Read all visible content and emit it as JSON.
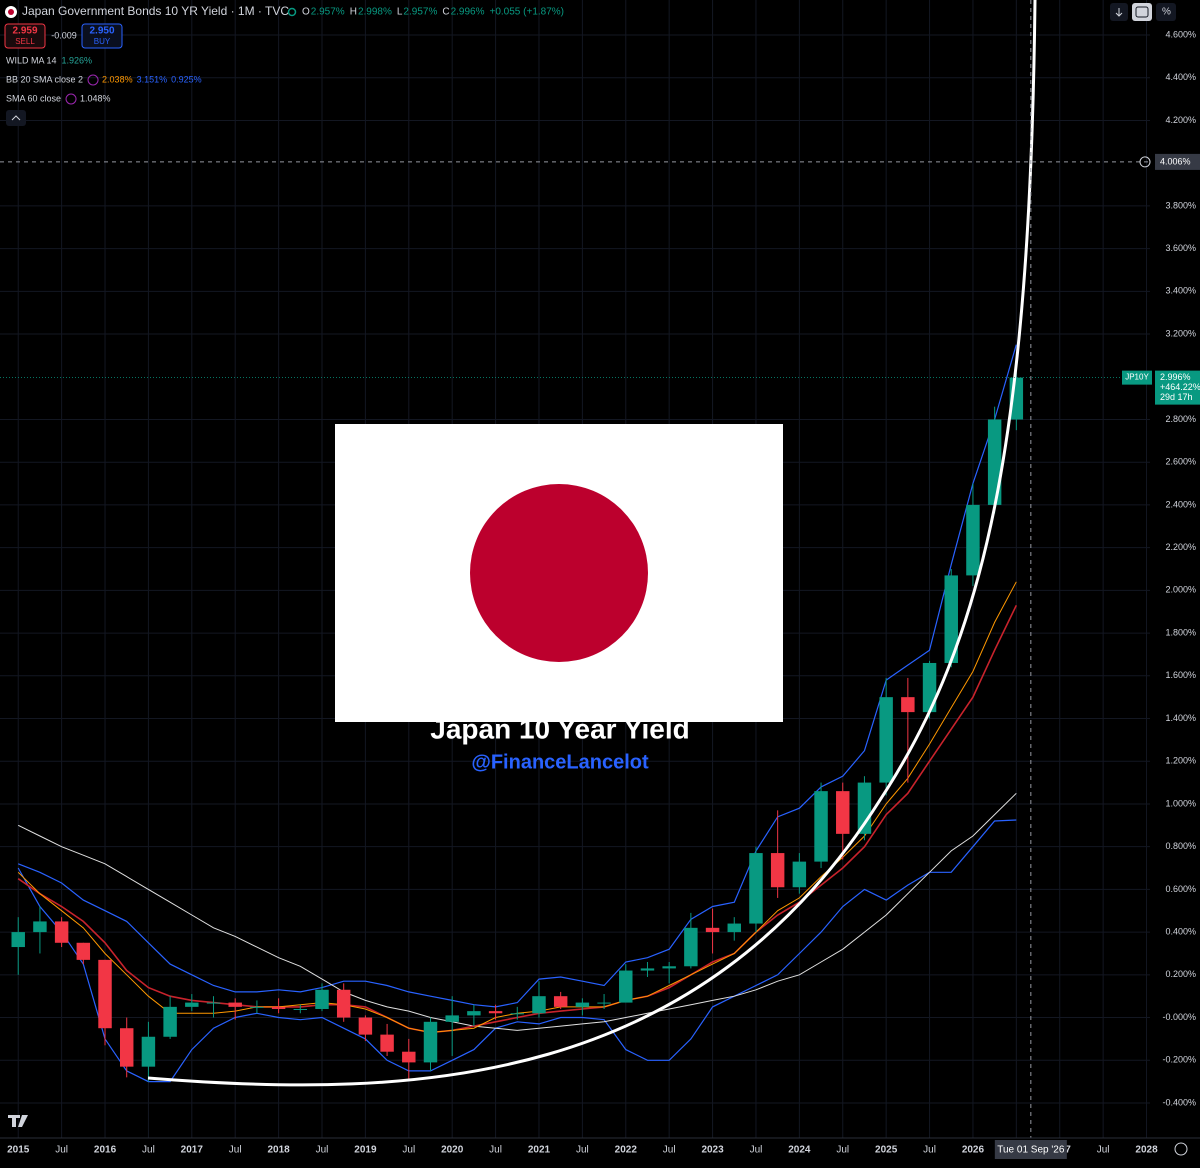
{
  "chart_data": {
    "type": "candlestick",
    "title": "Japan Government Bonds 10 YR Yield · 1M · TVC",
    "ohlc_legend": [
      "O",
      "2.957%",
      "H",
      "2.998%",
      "L",
      "2.957%",
      "C",
      "2.996%",
      "+0.055 (+1.87%)"
    ],
    "trade_buttons": {
      "sell_price": "2.959",
      "sell": "SELL",
      "spread": "-0.009",
      "buy_price": "2.950",
      "buy": "BUY"
    },
    "indicators": [
      {
        "name": "WILD MA 14",
        "values": [
          "1.926%"
        ]
      },
      {
        "name": "BB 20 SMA close 2",
        "values": [
          "2.038%",
          "3.151%",
          "0.925%"
        ]
      },
      {
        "name": "SMA 60 close",
        "values": [
          "1.048%"
        ]
      }
    ],
    "overlay_title": "Japan 10 Year Yield",
    "overlay_handle": "@FinanceLancelot",
    "price_tag": {
      "symbol": "JP10Y",
      "price": "2.996%",
      "change": "+464.22%",
      "countdown": "29d 17h"
    },
    "crosshair": {
      "price_label": "4.006%",
      "price": 4.006,
      "date_label": "Tue 01 Sep '26",
      "date": 2026.667
    },
    "current_price": 2.996,
    "up_color": "#089981",
    "down_color": "#f23645",
    "x": [
      2015.0,
      2015.25,
      2015.5,
      2015.75,
      2016.0,
      2016.25,
      2016.5,
      2016.75,
      2017.0,
      2017.25,
      2017.5,
      2017.75,
      2018.0,
      2018.25,
      2018.5,
      2018.75,
      2019.0,
      2019.25,
      2019.5,
      2019.75,
      2020.0,
      2020.25,
      2020.5,
      2020.75,
      2021.0,
      2021.25,
      2021.5,
      2021.75,
      2022.0,
      2022.25,
      2022.5,
      2022.75,
      2023.0,
      2023.25,
      2023.5,
      2023.75,
      2024.0,
      2024.25,
      2024.5,
      2024.75,
      2025.0,
      2025.25,
      2025.5,
      2025.75,
      2026.0,
      2026.25,
      2026.5
    ],
    "open": [
      0.33,
      0.4,
      0.45,
      0.35,
      0.27,
      -0.05,
      -0.23,
      -0.09,
      0.05,
      0.07,
      0.07,
      0.05,
      0.05,
      0.04,
      0.04,
      0.13,
      0.0,
      -0.08,
      -0.16,
      -0.21,
      -0.02,
      0.01,
      0.03,
      0.02,
      0.02,
      0.1,
      0.05,
      0.07,
      0.07,
      0.22,
      0.23,
      0.24,
      0.42,
      0.4,
      0.44,
      0.77,
      0.61,
      0.73,
      1.06,
      0.86,
      1.1,
      1.5,
      1.43,
      1.66,
      2.07,
      2.4,
      2.8
    ],
    "high": [
      0.47,
      0.52,
      0.47,
      0.35,
      0.27,
      0.0,
      -0.02,
      0.1,
      0.11,
      0.1,
      0.09,
      0.08,
      0.09,
      0.06,
      0.16,
      0.16,
      0.01,
      -0.03,
      -0.1,
      0.0,
      0.1,
      0.06,
      0.06,
      0.05,
      0.17,
      0.12,
      0.09,
      0.11,
      0.25,
      0.26,
      0.26,
      0.49,
      0.51,
      0.47,
      0.8,
      0.97,
      0.77,
      1.1,
      1.1,
      1.13,
      1.59,
      1.59,
      1.67,
      2.1,
      2.5,
      2.86,
      3.02
    ],
    "low": [
      0.2,
      0.3,
      0.33,
      0.25,
      -0.13,
      -0.28,
      -0.3,
      -0.1,
      0.03,
      0.0,
      -0.01,
      0.02,
      0.02,
      0.02,
      0.03,
      -0.02,
      -0.11,
      -0.18,
      -0.29,
      -0.25,
      -0.18,
      -0.04,
      -0.01,
      -0.01,
      0.0,
      0.04,
      0.01,
      0.04,
      0.1,
      0.19,
      0.16,
      0.23,
      0.3,
      0.36,
      0.4,
      0.56,
      0.58,
      0.7,
      0.74,
      0.83,
      1.04,
      1.1,
      1.4,
      1.64,
      2.02,
      2.36,
      2.75
    ],
    "close": [
      0.4,
      0.45,
      0.35,
      0.27,
      -0.05,
      -0.23,
      -0.09,
      0.05,
      0.07,
      0.07,
      0.05,
      0.05,
      0.04,
      0.04,
      0.13,
      0.0,
      -0.08,
      -0.16,
      -0.21,
      -0.02,
      0.01,
      0.03,
      0.02,
      0.02,
      0.1,
      0.05,
      0.07,
      0.07,
      0.22,
      0.23,
      0.24,
      0.42,
      0.4,
      0.44,
      0.77,
      0.61,
      0.73,
      1.06,
      0.86,
      1.1,
      1.5,
      1.43,
      1.66,
      2.07,
      2.4,
      2.8,
      2.996
    ],
    "series": [
      {
        "name": "BB upper",
        "color": "#2962ff",
        "width": 1.2,
        "values": [
          0.72,
          0.68,
          0.63,
          0.55,
          0.5,
          0.45,
          0.35,
          0.25,
          0.2,
          0.15,
          0.12,
          0.12,
          0.13,
          0.12,
          0.14,
          0.17,
          0.17,
          0.15,
          0.12,
          0.1,
          0.08,
          0.06,
          0.05,
          0.07,
          0.18,
          0.19,
          0.17,
          0.15,
          0.26,
          0.28,
          0.32,
          0.46,
          0.52,
          0.54,
          0.78,
          0.94,
          0.98,
          1.08,
          1.13,
          1.25,
          1.58,
          1.65,
          1.72,
          2.12,
          2.5,
          2.8,
          3.15
        ]
      },
      {
        "name": "BB lower",
        "color": "#2962ff",
        "width": 1.2,
        "values": [
          0.7,
          0.52,
          0.4,
          0.25,
          -0.1,
          -0.25,
          -0.3,
          -0.3,
          -0.15,
          -0.05,
          0.0,
          0.02,
          0.0,
          -0.01,
          0.0,
          -0.05,
          -0.1,
          -0.2,
          -0.25,
          -0.25,
          -0.2,
          -0.15,
          -0.05,
          -0.02,
          -0.03,
          0.0,
          0.0,
          -0.01,
          -0.15,
          -0.2,
          -0.2,
          -0.1,
          0.05,
          0.1,
          0.15,
          0.2,
          0.3,
          0.4,
          0.52,
          0.6,
          0.55,
          0.62,
          0.68,
          0.68,
          0.8,
          0.92,
          0.925
        ]
      },
      {
        "name": "SMA 60",
        "color": "#e0e0e0",
        "width": 1,
        "values": [
          0.9,
          0.85,
          0.8,
          0.76,
          0.72,
          0.66,
          0.6,
          0.54,
          0.48,
          0.42,
          0.38,
          0.33,
          0.28,
          0.24,
          0.18,
          0.12,
          0.08,
          0.05,
          0.03,
          0.0,
          -0.02,
          -0.04,
          -0.05,
          -0.06,
          -0.05,
          -0.04,
          -0.03,
          -0.02,
          0.0,
          0.02,
          0.04,
          0.06,
          0.08,
          0.1,
          0.13,
          0.17,
          0.2,
          0.26,
          0.32,
          0.4,
          0.48,
          0.58,
          0.68,
          0.78,
          0.85,
          0.95,
          1.05
        ]
      },
      {
        "name": "WILD MA",
        "color": "#c8232c",
        "width": 1.6,
        "values": [
          0.65,
          0.58,
          0.52,
          0.45,
          0.35,
          0.22,
          0.14,
          0.1,
          0.08,
          0.07,
          0.06,
          0.05,
          0.05,
          0.05,
          0.06,
          0.06,
          0.05,
          0.0,
          -0.05,
          -0.07,
          -0.06,
          -0.04,
          -0.02,
          0.0,
          0.02,
          0.03,
          0.04,
          0.05,
          0.08,
          0.1,
          0.14,
          0.2,
          0.26,
          0.3,
          0.4,
          0.48,
          0.54,
          0.62,
          0.7,
          0.8,
          0.95,
          1.05,
          1.2,
          1.35,
          1.5,
          1.72,
          1.93
        ]
      },
      {
        "name": "BB basis",
        "color": "#ff9800",
        "width": 1,
        "values": [
          0.68,
          0.58,
          0.5,
          0.42,
          0.3,
          0.2,
          0.1,
          0.02,
          0.02,
          0.02,
          0.03,
          0.05,
          0.05,
          0.06,
          0.07,
          0.06,
          0.04,
          0.0,
          -0.05,
          -0.07,
          -0.06,
          -0.05,
          0.0,
          0.02,
          0.03,
          0.05,
          0.05,
          0.05,
          0.08,
          0.1,
          0.15,
          0.2,
          0.25,
          0.3,
          0.4,
          0.5,
          0.56,
          0.66,
          0.75,
          0.85,
          1.0,
          1.12,
          1.28,
          1.45,
          1.62,
          1.85,
          2.04
        ]
      }
    ],
    "xlim": [
      2014.79,
      2028.04
    ],
    "ylim": [
      -0.564,
      4.764
    ],
    "yticks": [
      {
        "value": 4.6,
        "label": "4.600%"
      },
      {
        "value": 4.4,
        "label": "4.400%"
      },
      {
        "value": 4.2,
        "label": "4.200%"
      },
      {
        "value": 3.8,
        "label": "3.800%"
      },
      {
        "value": 3.6,
        "label": "3.600%"
      },
      {
        "value": 3.4,
        "label": "3.400%"
      },
      {
        "value": 3.2,
        "label": "3.200%"
      },
      {
        "value": 2.8,
        "label": "2.800%"
      },
      {
        "value": 2.6,
        "label": "2.600%"
      },
      {
        "value": 2.4,
        "label": "2.400%"
      },
      {
        "value": 2.2,
        "label": "2.200%"
      },
      {
        "value": 2.0,
        "label": "2.000%"
      },
      {
        "value": 1.8,
        "label": "1.800%"
      },
      {
        "value": 1.6,
        "label": "1.600%"
      },
      {
        "value": 1.4,
        "label": "1.400%"
      },
      {
        "value": 1.2,
        "label": "1.200%"
      },
      {
        "value": 1.0,
        "label": "1.000%"
      },
      {
        "value": 0.8,
        "label": "0.800%"
      },
      {
        "value": 0.6,
        "label": "0.600%"
      },
      {
        "value": 0.4,
        "label": "0.400%"
      },
      {
        "value": 0.2,
        "label": "0.200%"
      },
      {
        "value": 0,
        "label": "-0.000%"
      },
      {
        "value": -0.2,
        "label": "-0.200%"
      },
      {
        "value": -0.4,
        "label": "-0.400%"
      }
    ],
    "xticks": [
      2015,
      {
        "value": 2015.5,
        "label": "Jul"
      },
      2016,
      {
        "value": 2016.5,
        "label": "Jul"
      },
      2017,
      {
        "value": 2017.5,
        "label": "Jul"
      },
      2018,
      {
        "value": 2018.5,
        "label": "Jul"
      },
      2019,
      {
        "value": 2019.5,
        "label": "Jul"
      },
      2020,
      {
        "value": 2020.5,
        "label": "Jul"
      },
      2021,
      {
        "value": 2021.5,
        "label": "Jul"
      },
      2022,
      {
        "value": 2022.5,
        "label": "Jul"
      },
      2023,
      {
        "value": 2023.5,
        "label": "Jul"
      },
      2024,
      {
        "value": 2024.5,
        "label": "Jul"
      },
      2025,
      {
        "value": 2025.5,
        "label": "Jul"
      },
      2026,
      {
        "value": 2026.5,
        "label": "Jul"
      },
      2027,
      {
        "value": 2027.5,
        "label": "Jul"
      },
      2028
    ],
    "grid": true
  }
}
